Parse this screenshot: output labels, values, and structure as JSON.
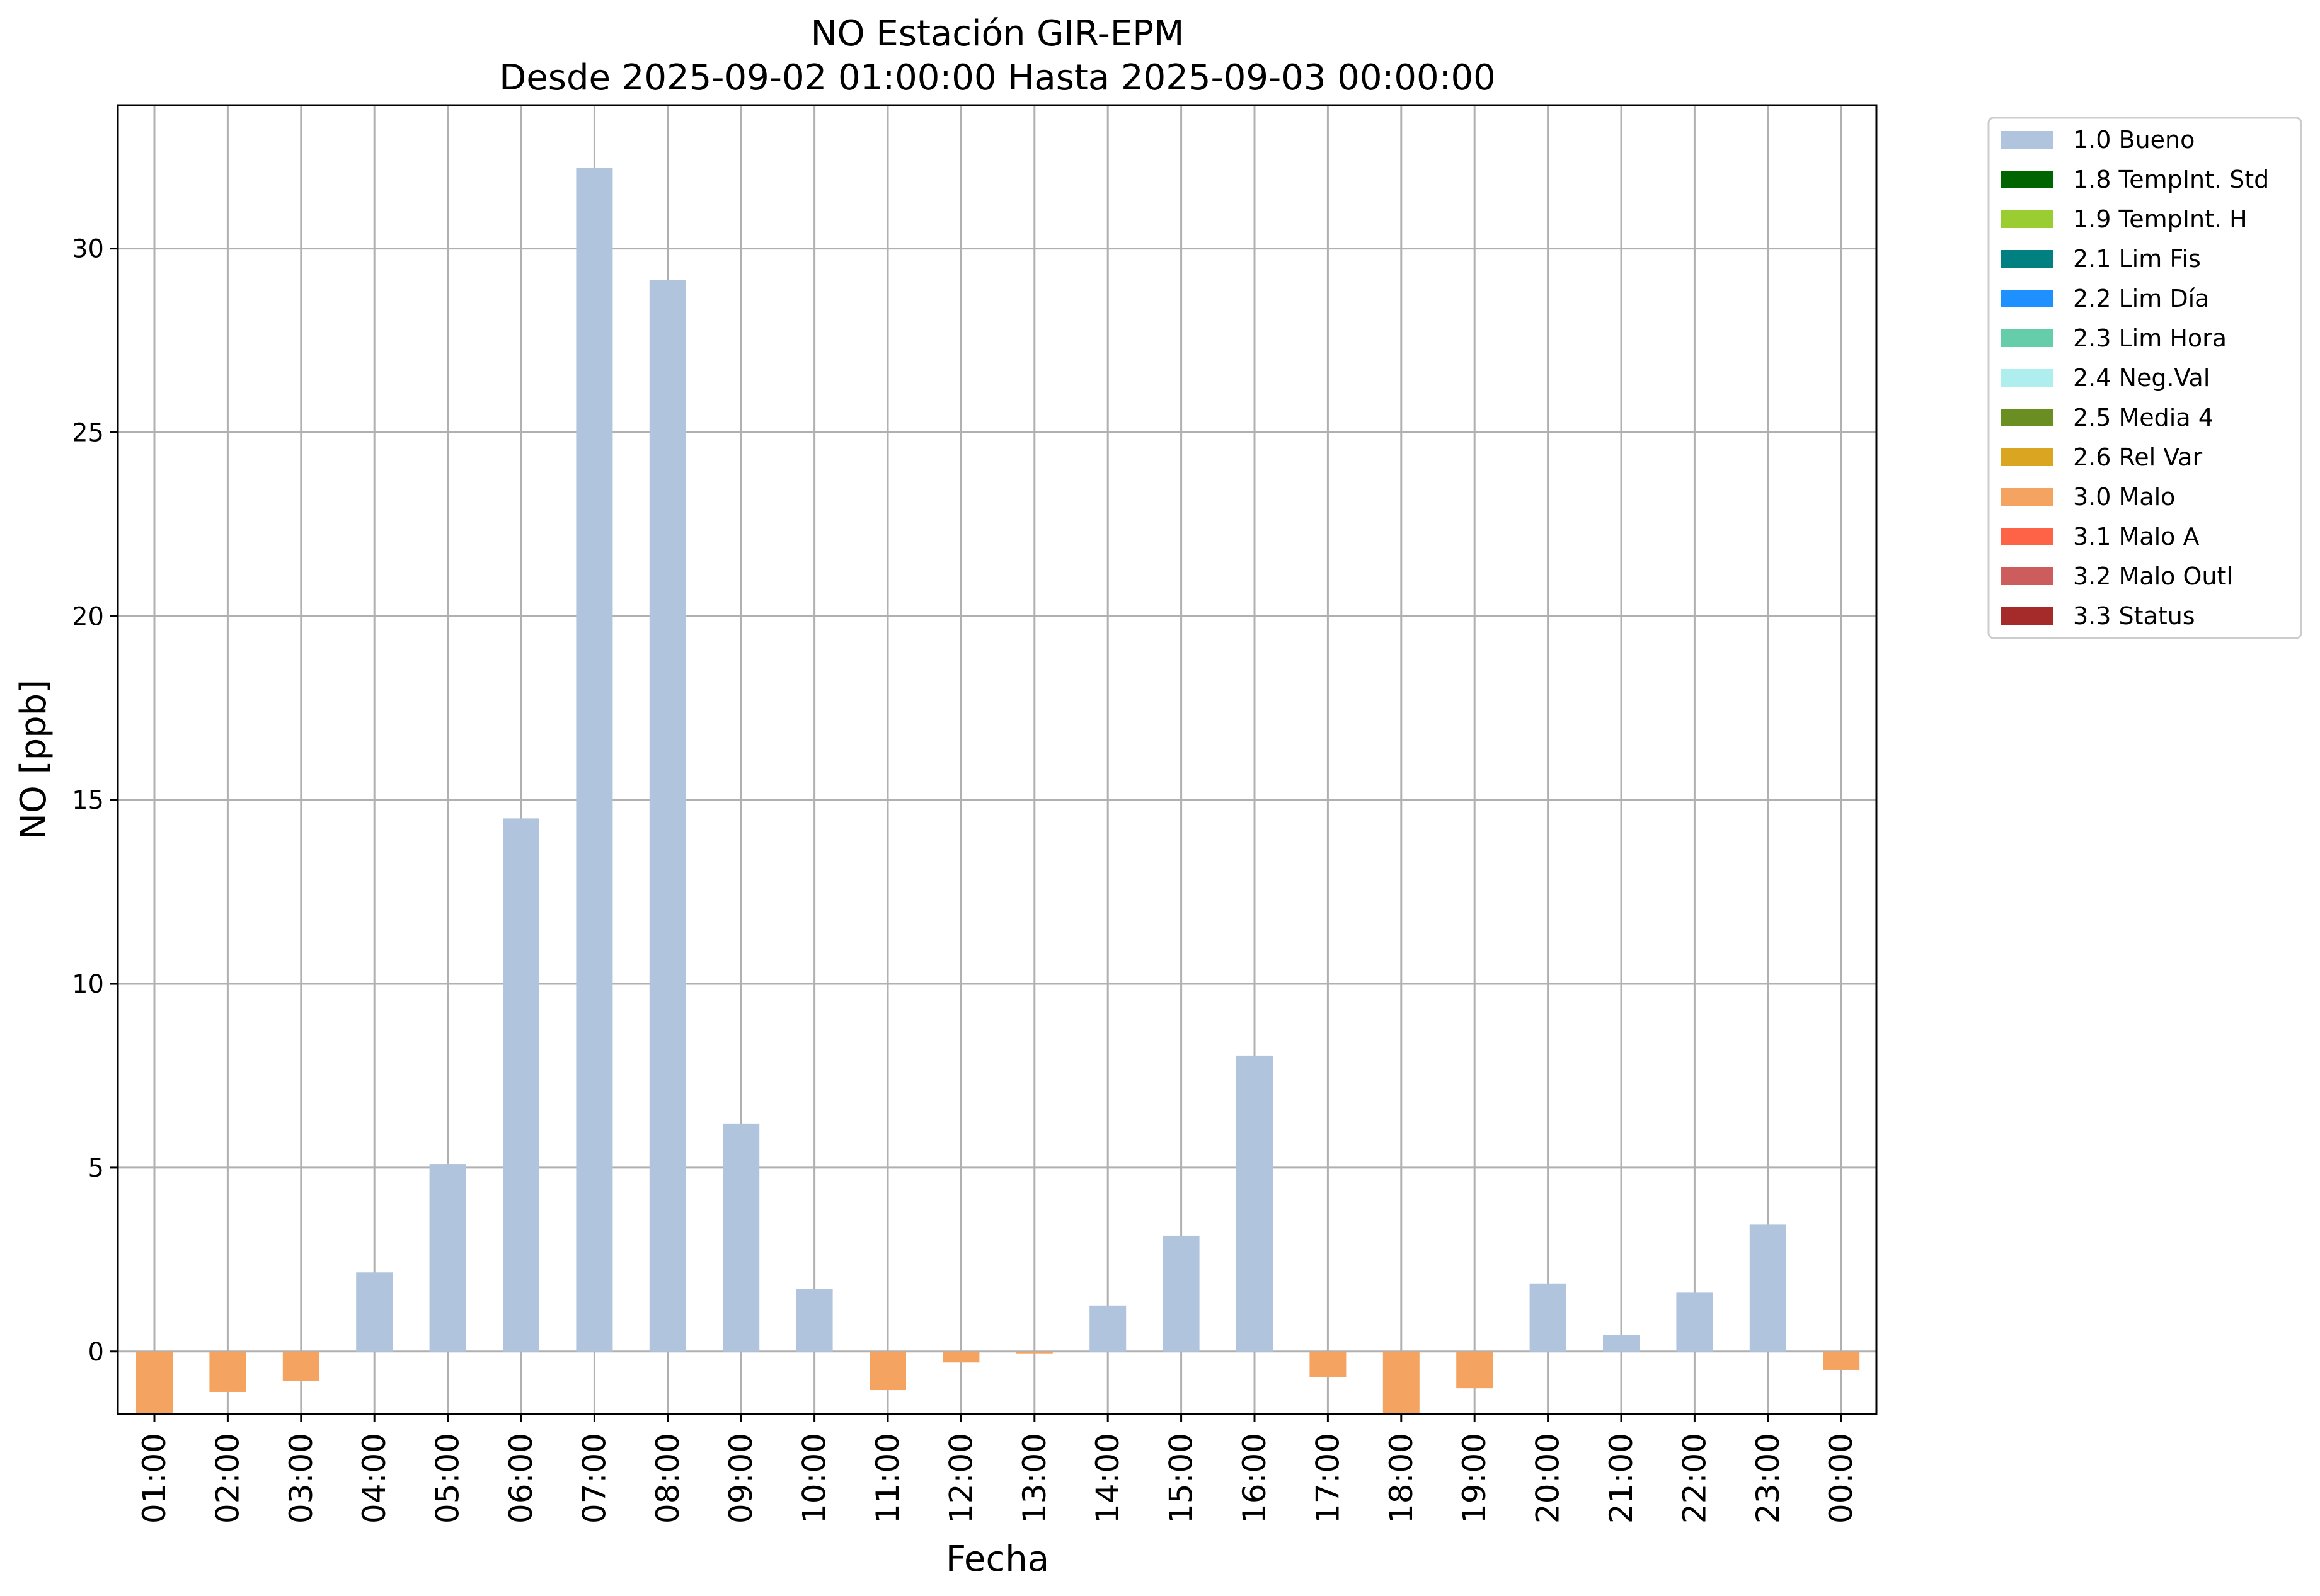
{
  "chart_data": {
    "type": "bar",
    "title": "NO Estación GIR-EPM",
    "subtitle": "Desde 2025-09-02 01:00:00 Hasta 2025-09-03 00:00:00",
    "xlabel": "Fecha",
    "ylabel": "NO [ppb]",
    "ylim": [
      -1.7,
      33.9
    ],
    "yticks": [
      0,
      5,
      10,
      15,
      20,
      25,
      30
    ],
    "grid": true,
    "legend_position": "outside-right",
    "categories": [
      "01:00",
      "02:00",
      "03:00",
      "04:00",
      "05:00",
      "06:00",
      "07:00",
      "08:00",
      "09:00",
      "10:00",
      "11:00",
      "12:00",
      "13:00",
      "14:00",
      "15:00",
      "16:00",
      "17:00",
      "18:00",
      "19:00",
      "20:00",
      "21:00",
      "22:00",
      "23:00",
      "00:00"
    ],
    "values": [
      -1.7,
      -1.1,
      -0.8,
      2.15,
      5.1,
      14.5,
      32.2,
      29.15,
      6.2,
      1.7,
      -1.05,
      -0.3,
      -0.05,
      1.25,
      3.15,
      8.05,
      -0.7,
      -1.7,
      -1.0,
      1.85,
      0.45,
      1.6,
      3.45,
      -0.5
    ],
    "flags": [
      "3.0 Malo",
      "3.0 Malo",
      "3.0 Malo",
      "1.0 Bueno",
      "1.0 Bueno",
      "1.0 Bueno",
      "1.0 Bueno",
      "1.0 Bueno",
      "1.0 Bueno",
      "1.0 Bueno",
      "3.0 Malo",
      "3.0 Malo",
      "3.0 Malo",
      "1.0 Bueno",
      "1.0 Bueno",
      "1.0 Bueno",
      "3.0 Malo",
      "3.0 Malo",
      "3.0 Malo",
      "1.0 Bueno",
      "1.0 Bueno",
      "1.0 Bueno",
      "1.0 Bueno",
      "3.0 Malo"
    ],
    "legend": [
      {
        "label": "1.0 Bueno",
        "color": "#b0c4de"
      },
      {
        "label": "1.8 TempInt. Std",
        "color": "#006400"
      },
      {
        "label": "1.9 TempInt. H",
        "color": "#9acd32"
      },
      {
        "label": "2.1 Lim Fis",
        "color": "#008080"
      },
      {
        "label": "2.2 Lim Día",
        "color": "#1e90ff"
      },
      {
        "label": "2.3 Lim Hora",
        "color": "#66cdaa"
      },
      {
        "label": "2.4 Neg.Val",
        "color": "#afeeee"
      },
      {
        "label": "2.5 Media 4",
        "color": "#6b8e23"
      },
      {
        "label": "2.6 Rel Var",
        "color": "#daa520"
      },
      {
        "label": "3.0 Malo",
        "color": "#f4a460"
      },
      {
        "label": "3.1 Malo A",
        "color": "#ff6347"
      },
      {
        "label": "3.2 Malo Outl",
        "color": "#cd5c5c"
      },
      {
        "label": "3.3 Status",
        "color": "#a52a2a"
      }
    ]
  }
}
